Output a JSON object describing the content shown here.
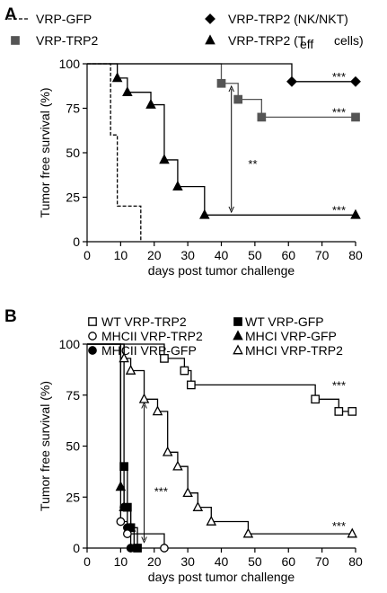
{
  "chart_data": [
    {
      "panel": "A",
      "type": "line",
      "step": true,
      "xlabel": "days post tumor challenge",
      "ylabel": "Tumor free survival (%)",
      "xlim": [
        0,
        80
      ],
      "ylim": [
        0,
        100
      ],
      "xticks": [
        0,
        10,
        20,
        30,
        40,
        50,
        60,
        70,
        80
      ],
      "yticks": [
        0,
        25,
        50,
        75,
        100
      ],
      "grid": false,
      "legend": "top",
      "series": [
        {
          "name": "VRP-GFP",
          "line": "dashed",
          "marker": "none",
          "color": "#000000",
          "points": [
            [
              0,
              100
            ],
            [
              7,
              100
            ],
            [
              7,
              60
            ],
            [
              9,
              60
            ],
            [
              9,
              20
            ],
            [
              16,
              20
            ],
            [
              16,
              0
            ]
          ]
        },
        {
          "name": "VRP-TRP2",
          "line": "solid",
          "marker": "square",
          "color": "#555555",
          "points": [
            [
              0,
              100
            ],
            [
              40,
              100
            ],
            [
              40,
              89
            ],
            [
              45,
              89
            ],
            [
              45,
              80
            ],
            [
              52,
              80
            ],
            [
              52,
              70
            ],
            [
              80,
              70
            ]
          ],
          "markers": [
            [
              40,
              89
            ],
            [
              45,
              80
            ],
            [
              52,
              70
            ],
            [
              80,
              70
            ]
          ]
        },
        {
          "name": "VRP-TRP2 (NK/NKT)",
          "line": "solid",
          "marker": "diamond",
          "color": "#000000",
          "points": [
            [
              0,
              100
            ],
            [
              61,
              100
            ],
            [
              61,
              90
            ],
            [
              80,
              90
            ]
          ],
          "markers": [
            [
              61,
              90
            ],
            [
              80,
              90
            ]
          ]
        },
        {
          "name": "VRP-TRP2 (T",
          "name_sub": "eff",
          "name_tail": "cells)",
          "line": "solid",
          "marker": "triangle",
          "color": "#000000",
          "points": [
            [
              0,
              100
            ],
            [
              9,
              100
            ],
            [
              9,
              92
            ],
            [
              12,
              92
            ],
            [
              12,
              84
            ],
            [
              19,
              84
            ],
            [
              19,
              77
            ],
            [
              23,
              77
            ],
            [
              23,
              46
            ],
            [
              27,
              46
            ],
            [
              27,
              31
            ],
            [
              35,
              31
            ],
            [
              35,
              15
            ],
            [
              80,
              15
            ]
          ],
          "markers": [
            [
              9,
              92
            ],
            [
              12,
              84
            ],
            [
              19,
              77
            ],
            [
              23,
              46
            ],
            [
              27,
              31
            ],
            [
              35,
              15
            ],
            [
              80,
              15
            ]
          ]
        }
      ],
      "annotations": [
        {
          "text": "***",
          "x": 73,
          "y": 93
        },
        {
          "text": "***",
          "x": 73,
          "y": 73
        },
        {
          "text": "**",
          "x": 48,
          "y": 44
        },
        {
          "text": "***",
          "x": 73,
          "y": 18
        }
      ],
      "arrow": {
        "x": 43,
        "y1": 86,
        "y2": 18
      }
    },
    {
      "panel": "B",
      "type": "line",
      "step": true,
      "xlabel": "days post tumor challenge",
      "ylabel": "Tumor free survival (%)",
      "xlim": [
        0,
        80
      ],
      "ylim": [
        0,
        100
      ],
      "xticks": [
        0,
        10,
        20,
        30,
        40,
        50,
        60,
        70,
        80
      ],
      "yticks": [
        0,
        25,
        50,
        75,
        100
      ],
      "grid": false,
      "legend": "top",
      "series": [
        {
          "name": "WT VRP-TRP2",
          "line": "solid",
          "marker": "square-open",
          "color": "#000000",
          "points": [
            [
              0,
              100
            ],
            [
              23,
              100
            ],
            [
              23,
              93
            ],
            [
              29,
              93
            ],
            [
              29,
              87
            ],
            [
              31,
              87
            ],
            [
              31,
              80
            ],
            [
              68,
              80
            ],
            [
              68,
              73
            ],
            [
              75,
              73
            ],
            [
              75,
              67
            ],
            [
              79,
              67
            ]
          ],
          "markers": [
            [
              23,
              93
            ],
            [
              29,
              87
            ],
            [
              31,
              80
            ],
            [
              68,
              73
            ],
            [
              75,
              67
            ],
            [
              79,
              67
            ]
          ]
        },
        {
          "name": "WT VRP-GFP",
          "line": "solid",
          "marker": "square",
          "color": "#000000",
          "points": [
            [
              0,
              100
            ],
            [
              11,
              100
            ],
            [
              11,
              40
            ],
            [
              12,
              40
            ],
            [
              12,
              20
            ],
            [
              13,
              20
            ],
            [
              13,
              10
            ],
            [
              15,
              10
            ],
            [
              15,
              0
            ]
          ],
          "markers": [
            [
              11,
              40
            ],
            [
              12,
              20
            ],
            [
              13,
              10
            ],
            [
              15,
              0
            ]
          ]
        },
        {
          "name": "MHCII VRP-GFP",
          "line": "solid",
          "marker": "circle",
          "color": "#000000",
          "points": [
            [
              0,
              100
            ],
            [
              10,
              100
            ],
            [
              10,
              40
            ],
            [
              11,
              40
            ],
            [
              11,
              20
            ],
            [
              12,
              20
            ],
            [
              12,
              10
            ],
            [
              13,
              10
            ],
            [
              13,
              0
            ]
          ],
          "markers": [
            [
              11,
              20
            ],
            [
              12,
              10
            ],
            [
              13,
              0
            ]
          ]
        },
        {
          "name": "MHCI VRP-GFP",
          "line": "solid",
          "marker": "triangle",
          "color": "#000000",
          "points": [
            [
              0,
              100
            ],
            [
              10,
              100
            ],
            [
              10,
              30
            ],
            [
              11,
              30
            ],
            [
              11,
              20
            ],
            [
              13,
              20
            ],
            [
              13,
              10
            ],
            [
              14,
              10
            ],
            [
              14,
              0
            ]
          ],
          "markers": [
            [
              10,
              30
            ],
            [
              11,
              20
            ],
            [
              13,
              10
            ]
          ]
        },
        {
          "name": "MHCII VRP-TRP2",
          "line": "solid",
          "marker": "circle-open",
          "color": "#000000",
          "points": [
            [
              0,
              100
            ],
            [
              10,
              100
            ],
            [
              10,
              13
            ],
            [
              12,
              13
            ],
            [
              12,
              7
            ],
            [
              23,
              7
            ],
            [
              23,
              0
            ]
          ],
          "markers": [
            [
              10,
              13
            ],
            [
              12,
              7
            ],
            [
              23,
              0
            ]
          ]
        },
        {
          "name": "MHCI VRP-TRP2",
          "line": "solid",
          "marker": "triangle-open",
          "color": "#000000",
          "points": [
            [
              0,
              100
            ],
            [
              11,
              100
            ],
            [
              11,
              93
            ],
            [
              13,
              93
            ],
            [
              13,
              87
            ],
            [
              17,
              87
            ],
            [
              17,
              73
            ],
            [
              21,
              73
            ],
            [
              21,
              67
            ],
            [
              24,
              67
            ],
            [
              24,
              47
            ],
            [
              27,
              47
            ],
            [
              27,
              40
            ],
            [
              30,
              40
            ],
            [
              30,
              27
            ],
            [
              33,
              27
            ],
            [
              33,
              20
            ],
            [
              37,
              20
            ],
            [
              37,
              13
            ],
            [
              48,
              13
            ],
            [
              48,
              7
            ],
            [
              79,
              7
            ]
          ],
          "markers": [
            [
              11,
              93
            ],
            [
              13,
              87
            ],
            [
              17,
              73
            ],
            [
              21,
              67
            ],
            [
              24,
              47
            ],
            [
              27,
              40
            ],
            [
              30,
              27
            ],
            [
              33,
              20
            ],
            [
              37,
              13
            ],
            [
              48,
              7
            ],
            [
              79,
              7
            ]
          ]
        }
      ],
      "annotations": [
        {
          "text": "***",
          "x": 73,
          "y": 80
        },
        {
          "text": "***",
          "x": 20,
          "y": 28
        },
        {
          "text": "***",
          "x": 73,
          "y": 11
        }
      ],
      "arrow": {
        "x": 17,
        "y1": 70,
        "y2": 4
      }
    }
  ]
}
